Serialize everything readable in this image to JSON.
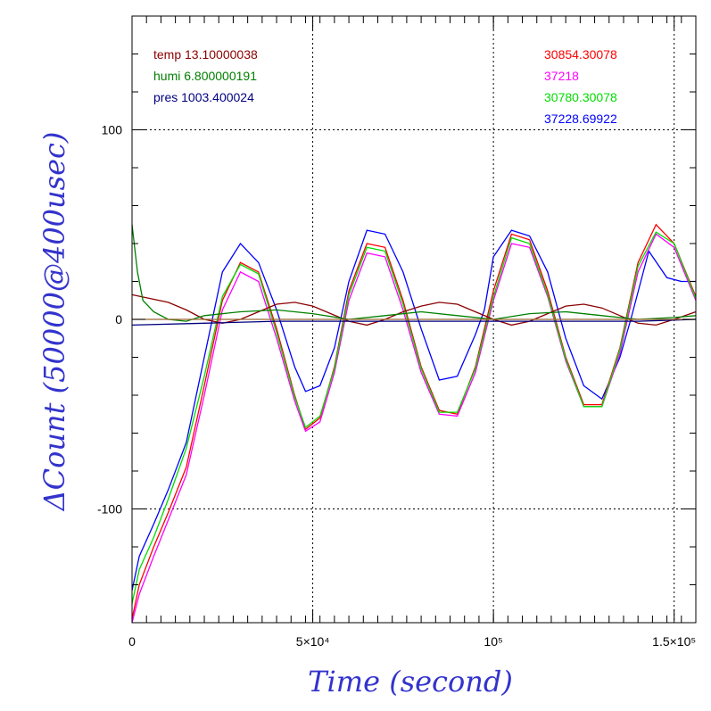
{
  "chart_data": {
    "type": "line",
    "xlabel": "Time (second)",
    "ylabel": "ΔCount (50000@400usec)",
    "xlim": [
      0,
      1560000
    ],
    "ylim": [
      -160,
      160
    ],
    "x_ticks": [
      {
        "value": 0,
        "label": "0"
      },
      {
        "value": 500000,
        "label": "5×10⁴"
      },
      {
        "value": 1000000,
        "label": "10⁵"
      },
      {
        "value": 1500000,
        "label": "1.5×10⁵"
      }
    ],
    "y_ticks": [
      {
        "value": -100,
        "label": "-100"
      },
      {
        "value": 0,
        "label": "0"
      },
      {
        "value": 100,
        "label": "100"
      }
    ],
    "grid": true,
    "colors": {
      "axis_title": "#3333cc",
      "temp": "#8b0000",
      "humi": "#008000",
      "pres": "#000080"
    },
    "legend_left": [
      {
        "label": "temp 13.10000038",
        "color": "#8b0000"
      },
      {
        "label": "humi 6.800000191",
        "color": "#008000"
      },
      {
        "label": "pres 1003.400024",
        "color": "#000080"
      }
    ],
    "legend_right": [
      {
        "label": "30854.30078",
        "color": "#ff0000"
      },
      {
        "label": "37218",
        "color": "#ff00ff"
      },
      {
        "label": "30780.30078",
        "color": "#00dd00"
      },
      {
        "label": "37228.69922",
        "color": "#0000ff"
      }
    ],
    "series": [
      {
        "color": "#0000ff",
        "x": [
          0,
          20000,
          60000,
          100000,
          150000,
          200000,
          250000,
          300000,
          350000,
          400000,
          450000,
          480000,
          520000,
          560000,
          600000,
          650000,
          700000,
          750000,
          800000,
          850000,
          900000,
          950000,
          975000,
          1000000,
          1050000,
          1100000,
          1150000,
          1200000,
          1250000,
          1300000,
          1350000,
          1380000,
          1430000,
          1480000,
          1520000,
          1560000
        ],
        "y": [
          -143,
          -125,
          -108,
          -90,
          -65,
          -20,
          25,
          40,
          30,
          5,
          -25,
          -38,
          -35,
          -15,
          20,
          47,
          45,
          25,
          -5,
          -32,
          -30,
          -8,
          5,
          33,
          47,
          44,
          25,
          -10,
          -35,
          -42,
          -20,
          0,
          36,
          22,
          20,
          20
        ]
      },
      {
        "color": "#ff0000",
        "x": [
          0,
          20000,
          60000,
          100000,
          150000,
          200000,
          250000,
          300000,
          350000,
          400000,
          450000,
          480000,
          520000,
          560000,
          600000,
          650000,
          700000,
          750000,
          800000,
          850000,
          900000,
          950000,
          1000000,
          1050000,
          1100000,
          1150000,
          1200000,
          1250000,
          1300000,
          1350000,
          1400000,
          1450000,
          1500000,
          1560000
        ],
        "y": [
          -158,
          -140,
          -120,
          -102,
          -78,
          -35,
          10,
          30,
          25,
          -5,
          -40,
          -58,
          -52,
          -25,
          15,
          40,
          38,
          10,
          -25,
          -48,
          -50,
          -25,
          15,
          45,
          42,
          15,
          -20,
          -45,
          -45,
          -15,
          30,
          50,
          40,
          12
        ]
      },
      {
        "color": "#ff00ff",
        "x": [
          0,
          20000,
          60000,
          100000,
          150000,
          200000,
          250000,
          300000,
          350000,
          400000,
          450000,
          480000,
          520000,
          560000,
          600000,
          650000,
          700000,
          750000,
          800000,
          850000,
          900000,
          950000,
          1000000,
          1050000,
          1100000,
          1150000,
          1200000,
          1250000,
          1300000,
          1350000,
          1400000,
          1450000,
          1500000,
          1560000
        ],
        "y": [
          -160,
          -145,
          -125,
          -106,
          -82,
          -40,
          5,
          25,
          20,
          -10,
          -43,
          -59,
          -54,
          -28,
          10,
          35,
          33,
          5,
          -28,
          -50,
          -51,
          -28,
          10,
          40,
          38,
          12,
          -22,
          -46,
          -46,
          -18,
          25,
          45,
          38,
          10
        ]
      },
      {
        "color": "#00dd00",
        "x": [
          0,
          20000,
          60000,
          100000,
          150000,
          200000,
          250000,
          300000,
          350000,
          400000,
          450000,
          480000,
          520000,
          560000,
          600000,
          650000,
          700000,
          750000,
          800000,
          850000,
          900000,
          950000,
          1000000,
          1050000,
          1100000,
          1150000,
          1200000,
          1250000,
          1300000,
          1350000,
          1400000,
          1450000,
          1500000,
          1560000
        ],
        "y": [
          -150,
          -132,
          -115,
          -95,
          -68,
          -30,
          12,
          29,
          24,
          -7,
          -41,
          -57,
          -51,
          -26,
          13,
          38,
          36,
          8,
          -26,
          -49,
          -49,
          -26,
          12,
          43,
          40,
          13,
          -21,
          -46,
          -46,
          -16,
          28,
          46,
          40,
          11
        ]
      },
      {
        "color": "#8b0000",
        "x": [
          0,
          50000,
          100000,
          150000,
          200000,
          250000,
          300000,
          350000,
          400000,
          450000,
          500000,
          550000,
          600000,
          650000,
          700000,
          750000,
          800000,
          850000,
          900000,
          950000,
          1000000,
          1050000,
          1100000,
          1150000,
          1200000,
          1250000,
          1300000,
          1350000,
          1400000,
          1450000,
          1500000,
          1560000
        ],
        "y": [
          13,
          11,
          9,
          5,
          0,
          -2,
          0,
          4,
          8,
          9,
          7,
          3,
          -1,
          -3,
          0,
          4,
          7,
          9,
          8,
          4,
          0,
          -3,
          -1,
          3,
          7,
          8,
          6,
          2,
          -2,
          -3,
          0,
          4
        ]
      },
      {
        "color": "#008000",
        "x": [
          0,
          15000,
          30000,
          60000,
          100000,
          150000,
          200000,
          300000,
          400000,
          500000,
          600000,
          700000,
          800000,
          900000,
          1000000,
          1100000,
          1200000,
          1300000,
          1400000,
          1500000,
          1560000
        ],
        "y": [
          50,
          25,
          10,
          4,
          0,
          -1,
          2,
          4,
          5,
          3,
          0,
          2,
          4,
          2,
          0,
          3,
          4,
          2,
          0,
          1,
          2
        ]
      },
      {
        "color": "#000080",
        "x": [
          0,
          200000,
          400000,
          600000,
          800000,
          1000000,
          1200000,
          1400000,
          1560000
        ],
        "y": [
          -3,
          -2,
          -1,
          -1,
          -1,
          -1,
          -1,
          -1,
          0
        ]
      },
      {
        "color": "#996633",
        "x": [
          0,
          1560000
        ],
        "y": [
          0,
          0
        ]
      }
    ]
  }
}
